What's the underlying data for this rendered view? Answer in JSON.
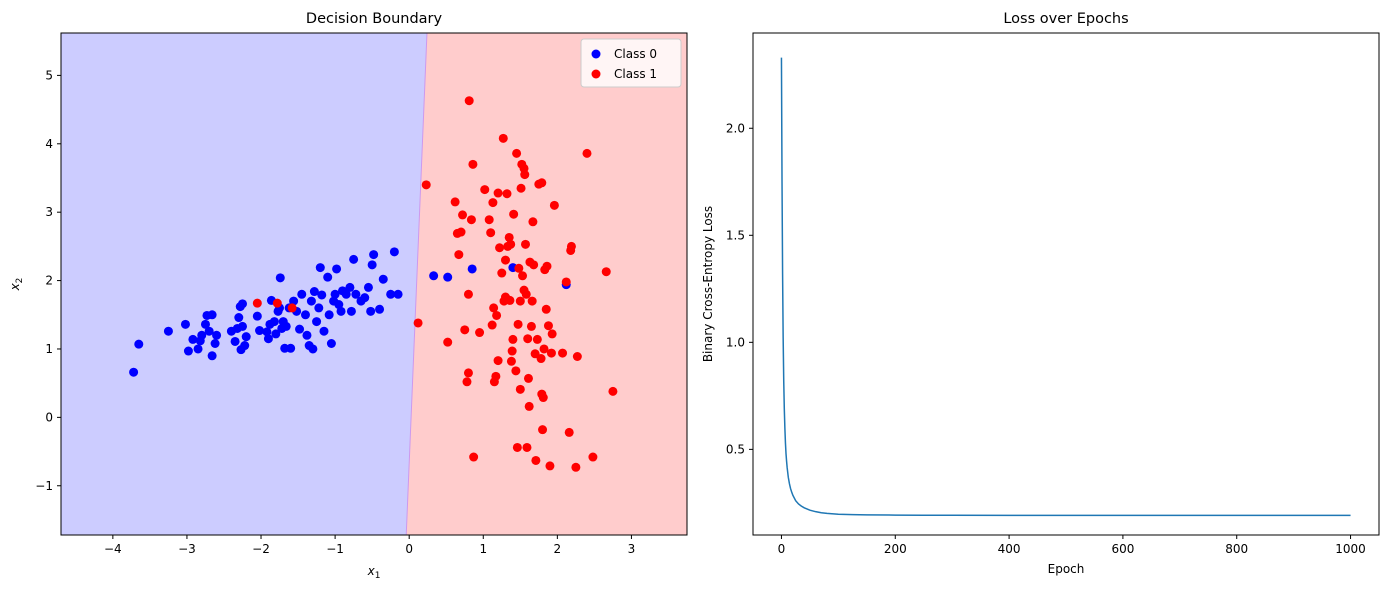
{
  "chart_data": [
    {
      "type": "scatter",
      "title": "Decision Boundary",
      "xlabel": "x",
      "xlabel_subscript": "1",
      "ylabel": "x",
      "ylabel_subscript": "2",
      "xlim": [
        -4.7,
        3.75
      ],
      "ylim": [
        -1.72,
        5.62
      ],
      "xticks": [
        -4,
        -3,
        -2,
        -1,
        0,
        1,
        2,
        3
      ],
      "yticks": [
        -1,
        0,
        1,
        2,
        3,
        4,
        5
      ],
      "grid": false,
      "legend_position": "top-right",
      "regions": [
        {
          "name": "Class 0 region",
          "color": "#ccccff"
        },
        {
          "name": "Class 1 region",
          "color": "#ffcccc"
        }
      ],
      "decision_boundary": [
        [
          0.24,
          5.62
        ],
        [
          -0.04,
          -1.72
        ]
      ],
      "series": [
        {
          "name": "Class 0",
          "color": "#0000ff",
          "points": [
            [
              -3.72,
              0.66
            ],
            [
              -3.65,
              1.07
            ],
            [
              -3.25,
              1.26
            ],
            [
              -3.02,
              1.36
            ],
            [
              -2.98,
              0.97
            ],
            [
              -2.92,
              1.14
            ],
            [
              -2.85,
              1.0
            ],
            [
              -2.82,
              1.12
            ],
            [
              -2.8,
              1.2
            ],
            [
              -2.75,
              1.36
            ],
            [
              -2.73,
              1.49
            ],
            [
              -2.7,
              1.26
            ],
            [
              -2.66,
              1.5
            ],
            [
              -2.66,
              0.9
            ],
            [
              -2.62,
              1.08
            ],
            [
              -2.6,
              1.2
            ],
            [
              -2.4,
              1.26
            ],
            [
              -2.35,
              1.11
            ],
            [
              -2.32,
              1.3
            ],
            [
              -2.3,
              1.46
            ],
            [
              -2.28,
              1.62
            ],
            [
              -2.27,
              0.99
            ],
            [
              -2.25,
              1.66
            ],
            [
              -2.25,
              1.33
            ],
            [
              -2.22,
              1.05
            ],
            [
              -2.2,
              1.18
            ],
            [
              -2.05,
              1.48
            ],
            [
              -2.02,
              1.27
            ],
            [
              -1.92,
              1.25
            ],
            [
              -1.9,
              1.15
            ],
            [
              -1.88,
              1.36
            ],
            [
              -1.86,
              1.71
            ],
            [
              -1.82,
              1.4
            ],
            [
              -1.8,
              1.22
            ],
            [
              -1.77,
              1.55
            ],
            [
              -1.75,
              1.6
            ],
            [
              -1.74,
              2.04
            ],
            [
              -1.72,
              1.3
            ],
            [
              -1.7,
              1.4
            ],
            [
              -1.68,
              1.01
            ],
            [
              -1.66,
              1.33
            ],
            [
              -1.62,
              1.6
            ],
            [
              -1.6,
              1.01
            ],
            [
              -1.56,
              1.7
            ],
            [
              -1.52,
              1.55
            ],
            [
              -1.48,
              1.29
            ],
            [
              -1.45,
              1.8
            ],
            [
              -1.4,
              1.5
            ],
            [
              -1.38,
              1.2
            ],
            [
              -1.35,
              1.05
            ],
            [
              -1.32,
              1.7
            ],
            [
              -1.3,
              1.0
            ],
            [
              -1.28,
              1.84
            ],
            [
              -1.25,
              1.4
            ],
            [
              -1.22,
              1.6
            ],
            [
              -1.2,
              2.19
            ],
            [
              -1.18,
              1.79
            ],
            [
              -1.15,
              1.26
            ],
            [
              -1.1,
              2.05
            ],
            [
              -1.08,
              1.5
            ],
            [
              -1.05,
              1.08
            ],
            [
              -1.02,
              1.7
            ],
            [
              -1.0,
              1.8
            ],
            [
              -0.98,
              2.17
            ],
            [
              -0.95,
              1.65
            ],
            [
              -0.92,
              1.55
            ],
            [
              -0.9,
              1.85
            ],
            [
              -0.85,
              1.8
            ],
            [
              -0.8,
              1.9
            ],
            [
              -0.78,
              1.55
            ],
            [
              -0.75,
              2.31
            ],
            [
              -0.72,
              1.8
            ],
            [
              -0.65,
              1.7
            ],
            [
              -0.6,
              1.75
            ],
            [
              -0.55,
              1.9
            ],
            [
              -0.52,
              1.55
            ],
            [
              -0.5,
              2.23
            ],
            [
              -0.48,
              2.38
            ],
            [
              -0.4,
              1.58
            ],
            [
              -0.35,
              2.02
            ],
            [
              -0.25,
              1.8
            ],
            [
              -0.2,
              2.42
            ],
            [
              -0.15,
              1.8
            ],
            [
              0.33,
              2.07
            ],
            [
              0.52,
              2.05
            ],
            [
              0.85,
              2.17
            ],
            [
              1.4,
              2.19
            ],
            [
              2.12,
              1.94
            ]
          ]
        },
        {
          "name": "Class 1",
          "color": "#ff0000",
          "points": [
            [
              0.12,
              1.38
            ],
            [
              0.23,
              3.4
            ],
            [
              0.52,
              1.1
            ],
            [
              0.62,
              3.15
            ],
            [
              0.65,
              2.69
            ],
            [
              0.67,
              2.38
            ],
            [
              0.7,
              2.71
            ],
            [
              0.72,
              2.96
            ],
            [
              0.75,
              1.28
            ],
            [
              0.78,
              0.52
            ],
            [
              0.8,
              0.65
            ],
            [
              0.8,
              1.8
            ],
            [
              0.81,
              4.63
            ],
            [
              0.84,
              2.89
            ],
            [
              0.86,
              3.7
            ],
            [
              0.87,
              -0.58
            ],
            [
              0.95,
              1.24
            ],
            [
              1.02,
              3.33
            ],
            [
              1.08,
              2.89
            ],
            [
              1.1,
              2.7
            ],
            [
              1.12,
              1.35
            ],
            [
              1.13,
              3.14
            ],
            [
              1.14,
              1.6
            ],
            [
              1.15,
              0.52
            ],
            [
              1.17,
              0.6
            ],
            [
              1.18,
              1.49
            ],
            [
              1.2,
              3.28
            ],
            [
              1.2,
              0.83
            ],
            [
              1.22,
              2.48
            ],
            [
              1.25,
              2.11
            ],
            [
              1.27,
              4.08
            ],
            [
              1.28,
              1.7
            ],
            [
              1.3,
              2.3
            ],
            [
              1.3,
              1.76
            ],
            [
              1.32,
              3.27
            ],
            [
              1.33,
              2.5
            ],
            [
              1.35,
              2.63
            ],
            [
              1.36,
              1.71
            ],
            [
              1.37,
              2.53
            ],
            [
              1.38,
              0.82
            ],
            [
              1.39,
              0.97
            ],
            [
              1.4,
              1.14
            ],
            [
              1.41,
              2.97
            ],
            [
              1.44,
              0.68
            ],
            [
              1.45,
              3.86
            ],
            [
              1.46,
              -0.44
            ],
            [
              1.47,
              1.36
            ],
            [
              1.48,
              2.18
            ],
            [
              1.5,
              1.7
            ],
            [
              1.5,
              0.41
            ],
            [
              1.51,
              3.35
            ],
            [
              1.52,
              3.7
            ],
            [
              1.53,
              2.07
            ],
            [
              1.55,
              3.64
            ],
            [
              1.55,
              1.86
            ],
            [
              1.56,
              3.55
            ],
            [
              1.57,
              2.53
            ],
            [
              1.58,
              1.8
            ],
            [
              1.59,
              -0.44
            ],
            [
              1.6,
              1.15
            ],
            [
              1.61,
              0.57
            ],
            [
              1.62,
              0.16
            ],
            [
              1.63,
              2.27
            ],
            [
              1.65,
              1.33
            ],
            [
              1.66,
              1.7
            ],
            [
              1.67,
              2.86
            ],
            [
              1.68,
              2.23
            ],
            [
              1.7,
              0.93
            ],
            [
              1.71,
              -0.63
            ],
            [
              1.73,
              1.14
            ],
            [
              1.75,
              3.41
            ],
            [
              1.78,
              0.86
            ],
            [
              1.79,
              3.43
            ],
            [
              1.79,
              0.34
            ],
            [
              1.8,
              -0.18
            ],
            [
              1.81,
              0.29
            ],
            [
              1.82,
              1.0
            ],
            [
              1.83,
              2.16
            ],
            [
              1.85,
              1.58
            ],
            [
              1.86,
              2.21
            ],
            [
              1.88,
              1.34
            ],
            [
              1.9,
              -0.71
            ],
            [
              1.92,
              0.94
            ],
            [
              1.93,
              1.22
            ],
            [
              1.96,
              3.1
            ],
            [
              2.07,
              0.94
            ],
            [
              2.12,
              1.98
            ],
            [
              2.16,
              -0.22
            ],
            [
              2.18,
              2.44
            ],
            [
              2.19,
              2.5
            ],
            [
              2.25,
              -0.73
            ],
            [
              2.27,
              0.89
            ],
            [
              2.4,
              3.86
            ],
            [
              2.48,
              -0.58
            ],
            [
              2.66,
              2.13
            ],
            [
              2.75,
              0.38
            ],
            [
              -2.05,
              1.67
            ],
            [
              -1.78,
              1.67
            ],
            [
              -1.58,
              1.6
            ]
          ]
        }
      ]
    },
    {
      "type": "line",
      "title": "Loss over Epochs",
      "xlabel": "Epoch",
      "ylabel": "Binary Cross-Entropy Loss",
      "xlim": [
        -50,
        1050
      ],
      "ylim": [
        0.1,
        2.445
      ],
      "xticks": [
        0,
        200,
        400,
        600,
        800,
        1000
      ],
      "yticks": [
        0.5,
        1.0,
        1.5,
        2.0
      ],
      "ytick_labels": [
        "0.5",
        "1.0",
        "1.5",
        "2.0"
      ],
      "grid": false,
      "series": [
        {
          "name": "loss",
          "color": "#1f77b4",
          "x": [
            0,
            1,
            2,
            3,
            4,
            5,
            6,
            7,
            8,
            9,
            10,
            12,
            14,
            16,
            18,
            20,
            25,
            30,
            35,
            40,
            50,
            60,
            70,
            80,
            100,
            125,
            150,
            200,
            250,
            300,
            400,
            500,
            600,
            700,
            800,
            900,
            1000
          ],
          "y": [
            2.33,
            1.75,
            1.32,
            1.02,
            0.82,
            0.69,
            0.6,
            0.53,
            0.48,
            0.445,
            0.415,
            0.37,
            0.34,
            0.317,
            0.3,
            0.286,
            0.26,
            0.245,
            0.235,
            0.227,
            0.216,
            0.209,
            0.204,
            0.201,
            0.197,
            0.195,
            0.194,
            0.193,
            0.1925,
            0.192,
            0.1918,
            0.1916,
            0.1915,
            0.1915,
            0.1914,
            0.1914,
            0.1914
          ]
        }
      ]
    }
  ]
}
